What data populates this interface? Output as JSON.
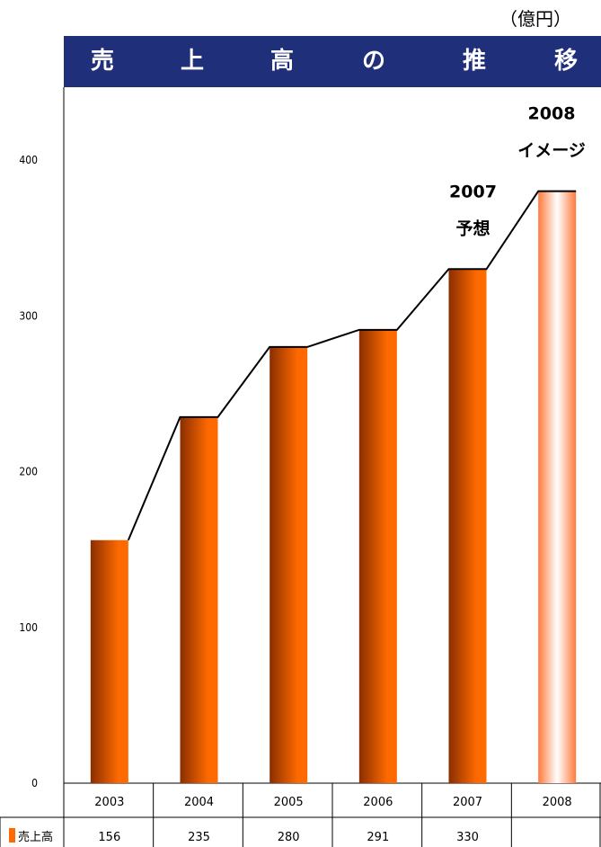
{
  "unit_label": "（億円）",
  "title_chars": [
    "売",
    "上",
    "高",
    "の",
    "推",
    "移"
  ],
  "colors": {
    "title_bg": "#1f2f7a",
    "title_fg": "#ffffff",
    "bar_dark": "#8a2e00",
    "bar_light": "#ff6a00",
    "projection_fill": "#ff7a3c",
    "line": "#000000"
  },
  "chart_data": {
    "type": "bar",
    "title": "売上高の推移",
    "ylabel": "",
    "xlabel": "",
    "ylim": [
      0,
      400
    ],
    "yticks": [
      0,
      100,
      200,
      300,
      400
    ],
    "categories": [
      "2003",
      "2004",
      "2005",
      "2006",
      "2007",
      "2008"
    ],
    "series": [
      {
        "name": "売上高",
        "values": [
          156,
          235,
          280,
          291,
          330,
          380
        ]
      }
    ],
    "table_values": [
      "156",
      "235",
      "280",
      "291",
      "330",
      ""
    ],
    "trend_line": true,
    "annotations": [
      {
        "category": "2007",
        "lines": [
          "2007",
          "予想"
        ]
      },
      {
        "category": "2008",
        "lines": [
          "2008",
          "イメージ"
        ]
      }
    ],
    "grid": false
  }
}
